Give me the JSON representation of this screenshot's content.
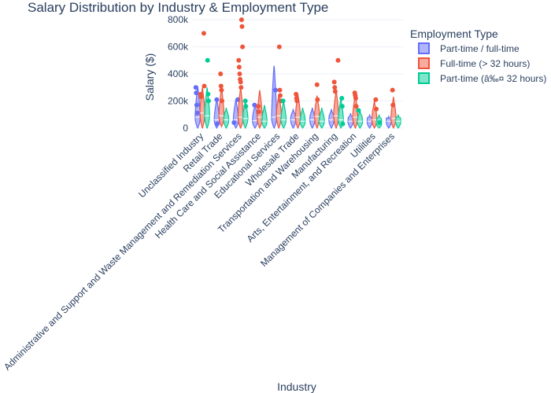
{
  "chart_data": {
    "type": "violin",
    "title": "Salary Distribution by Industry & Employment Type",
    "xlabel": "Industry",
    "ylabel": "Salary ($)",
    "ylim": [
      -30000,
      830000
    ],
    "yticks": [
      0,
      200000,
      400000,
      600000,
      800000
    ],
    "ytick_labels": [
      "0",
      "200k",
      "400k",
      "600k",
      "800k"
    ],
    "categories": [
      "Unclassified Industry",
      "Retail Trade",
      "Administrative and Support and Waste Management and Remediation Services",
      "Health Care and Social Assistance",
      "Educational Services",
      "Wholesale Trade",
      "Transportation and Warehousing",
      "Manufacturing",
      "Arts, Entertainment, and Recreation",
      "Utilities",
      "Management of Companies and Enterprises"
    ],
    "legend": {
      "title": "Employment Type",
      "position": "top-right"
    },
    "series": [
      {
        "name": "Part-time / full-time",
        "color": "#636efa",
        "stats": [
          {
            "min": 0,
            "median": 80000,
            "max": 310000
          },
          {
            "min": 0,
            "median": 60000,
            "max": 220000
          },
          {
            "min": 0,
            "median": 60000,
            "max": 215000
          },
          {
            "min": 0,
            "median": 55000,
            "max": 180000
          },
          {
            "min": 0,
            "median": 80000,
            "max": 460000
          },
          {
            "min": 0,
            "median": 60000,
            "max": 140000
          },
          {
            "min": 0,
            "median": 60000,
            "max": 150000
          },
          {
            "min": 0,
            "median": 60000,
            "max": 140000
          },
          {
            "min": 0,
            "median": 50000,
            "max": 110000
          },
          {
            "min": 0,
            "median": 50000,
            "max": 100000
          },
          {
            "min": 0,
            "median": 50000,
            "max": 90000
          }
        ],
        "outliers": [
          [
            300000,
            260000,
            170000,
            110000
          ],
          [
            210000,
            30000
          ],
          [
            210000,
            40000
          ],
          [
            170000
          ],
          [
            280000
          ],
          [],
          [],
          [],
          [],
          [],
          []
        ]
      },
      {
        "name": "Full-time (> 32 hours)",
        "color": "#ef553b",
        "stats": [
          {
            "min": 0,
            "median": 110000,
            "max": 300000
          },
          {
            "min": 10000,
            "median": 90000,
            "max": 300000
          },
          {
            "min": 0,
            "median": 80000,
            "max": 300000
          },
          {
            "min": 0,
            "median": 80000,
            "max": 280000
          },
          {
            "min": 0,
            "median": 90000,
            "max": 250000
          },
          {
            "min": 0,
            "median": 80000,
            "max": 250000
          },
          {
            "min": 0,
            "median": 85000,
            "max": 240000
          },
          {
            "min": 0,
            "median": 90000,
            "max": 280000
          },
          {
            "min": 0,
            "median": 80000,
            "max": 250000
          },
          {
            "min": 0,
            "median": 60000,
            "max": 200000
          },
          {
            "min": 0,
            "median": 70000,
            "max": 230000
          }
        ],
        "outliers": [
          [
            700000,
            310000,
            250000,
            230000
          ],
          [
            400000,
            310000,
            280000,
            200000
          ],
          [
            800000,
            750000,
            600000,
            500000,
            450000,
            400000,
            360000,
            340000,
            300000
          ],
          [
            160000,
            120000
          ],
          [
            600000,
            280000,
            240000,
            200000
          ],
          [
            250000,
            220000,
            200000
          ],
          [
            320000,
            210000
          ],
          [
            500000,
            340000,
            300000,
            270000
          ],
          [
            260000,
            240000,
            220000,
            160000
          ],
          [
            210000,
            140000
          ],
          [
            280000,
            170000
          ]
        ]
      },
      {
        "name": "Part-time (â‰¤ 32 hours)",
        "color": "#00cc96",
        "stats": [
          {
            "min": 0,
            "median": 90000,
            "max": 300000
          },
          {
            "min": 0,
            "median": 60000,
            "max": 150000
          },
          {
            "min": 0,
            "median": 70000,
            "max": 200000
          },
          {
            "min": 0,
            "median": 50000,
            "max": 170000
          },
          {
            "min": 0,
            "median": 60000,
            "max": 200000
          },
          {
            "min": 0,
            "median": 50000,
            "max": 150000
          },
          {
            "min": 0,
            "median": 50000,
            "max": 150000
          },
          {
            "min": 0,
            "median": 60000,
            "max": 220000
          },
          {
            "min": 0,
            "median": 50000,
            "max": 130000
          },
          {
            "min": 0,
            "median": 40000,
            "max": 100000
          },
          {
            "min": 0,
            "median": 50000,
            "max": 100000
          }
        ],
        "outliers": [
          [
            500000,
            250000,
            200000
          ],
          [],
          [
            200000,
            160000
          ],
          [],
          [
            200000
          ],
          [],
          [],
          [
            220000,
            160000,
            30000
          ],
          [
            130000
          ],
          [
            40000
          ],
          []
        ]
      }
    ]
  }
}
